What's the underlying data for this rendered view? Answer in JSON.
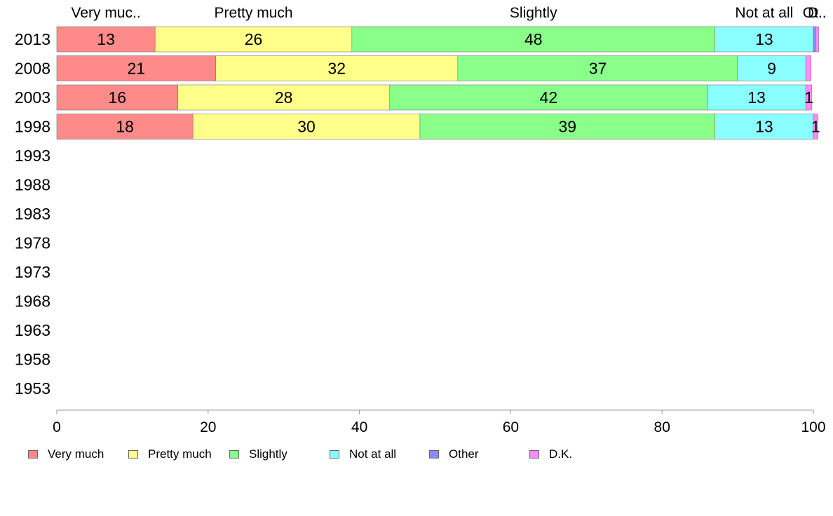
{
  "chart_data": {
    "type": "bar",
    "orientation": "horizontal",
    "stacked": true,
    "categories": [
      "2013",
      "2008",
      "2003",
      "1998",
      "1993",
      "1988",
      "1983",
      "1978",
      "1973",
      "1968",
      "1963",
      "1958",
      "1953"
    ],
    "series": [
      {
        "name": "Very much",
        "color": "#ff8a8a",
        "values": [
          13,
          21,
          16,
          18,
          null,
          null,
          null,
          null,
          null,
          null,
          null,
          null,
          null
        ]
      },
      {
        "name": "Pretty much",
        "color": "#ffff8a",
        "values": [
          26,
          32,
          28,
          30,
          null,
          null,
          null,
          null,
          null,
          null,
          null,
          null,
          null
        ]
      },
      {
        "name": "Slightly",
        "color": "#8aff8a",
        "values": [
          48,
          37,
          42,
          39,
          null,
          null,
          null,
          null,
          null,
          null,
          null,
          null,
          null
        ]
      },
      {
        "name": "Not at all",
        "color": "#8affff",
        "values": [
          13,
          9,
          13,
          13,
          null,
          null,
          null,
          null,
          null,
          null,
          null,
          null,
          null
        ]
      },
      {
        "name": "Other",
        "color": "#8a8aff",
        "values": [
          0.3,
          0,
          0,
          0,
          null,
          null,
          null,
          null,
          null,
          null,
          null,
          null,
          null
        ]
      },
      {
        "name": "D.K.",
        "color": "#ff8aff",
        "values": [
          0.4,
          0.7,
          0.8,
          0.6,
          null,
          null,
          null,
          null,
          null,
          null,
          null,
          null,
          null
        ]
      }
    ],
    "data_labels": [
      [
        "13",
        "26",
        "48",
        "13",
        "",
        ""
      ],
      [
        "21",
        "32",
        "37",
        "9",
        "",
        ""
      ],
      [
        "16",
        "28",
        "42",
        "13",
        "",
        "1"
      ],
      [
        "18",
        "30",
        "39",
        "13",
        "",
        "1"
      ]
    ],
    "top_labels": [
      "Very muc..",
      "Pretty much",
      "Slightly",
      "Not at all",
      "Ot..",
      "D.."
    ],
    "xlim": [
      0,
      100
    ],
    "x_ticks": [
      "0",
      "20",
      "40",
      "60",
      "80",
      "100"
    ],
    "xlabel": "",
    "ylabel": "",
    "title": "",
    "grid": false,
    "legend_position": "bottom"
  }
}
